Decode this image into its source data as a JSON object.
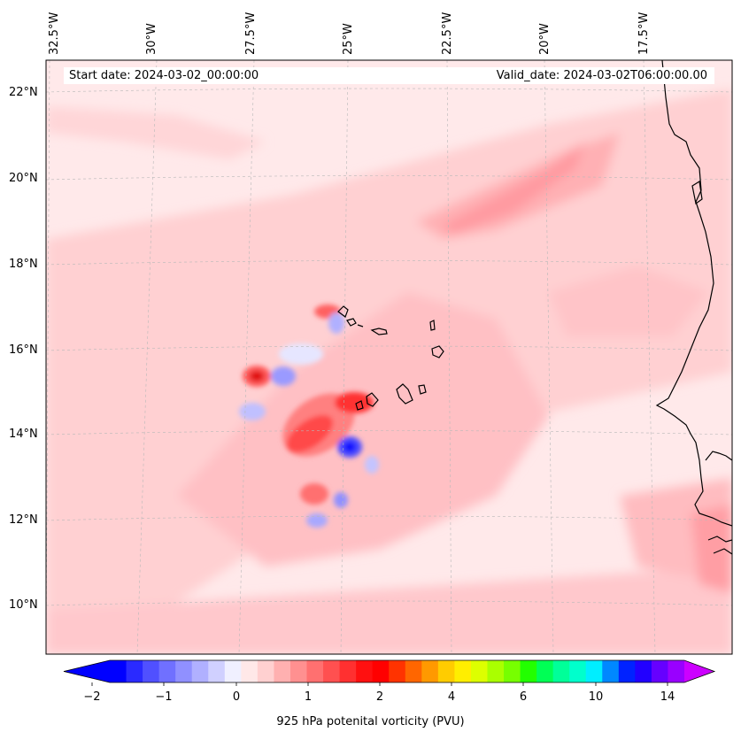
{
  "header": {
    "start_date": "Start date: 2024-03-02_00:00:00",
    "valid_date": "Valid_date: 2024-03-02T06:00:00.00"
  },
  "map": {
    "longitude_labels": [
      "32.5°W",
      "30°W",
      "27.5°W",
      "25°W",
      "22.5°W",
      "20°W",
      "17.5°W"
    ],
    "latitude_labels": [
      "22°N",
      "20°N",
      "18°N",
      "16°N",
      "14°N",
      "12°N",
      "10°N"
    ],
    "extent": {
      "lon_west": -32.5,
      "lon_east": -15.5,
      "lat_south": 8.9,
      "lat_north": 22.8
    },
    "gridlines": true,
    "background_color": "#ffe9ea",
    "coastline_color": "#000000"
  },
  "colorbar": {
    "label": "925 hPa potenital vorticity (PVU)",
    "tick_labels": [
      "−2",
      "−1",
      "0",
      "1",
      "2",
      "4",
      "6",
      "10",
      "14"
    ],
    "extend": "both",
    "colors": [
      "#0000ff",
      "#2a2aff",
      "#5050ff",
      "#7070ff",
      "#9090ff",
      "#b0b0ff",
      "#d0d0ff",
      "#f0f0ff",
      "#ffe8e8",
      "#ffd0d0",
      "#ffb0b0",
      "#ff9090",
      "#ff7070",
      "#ff5050",
      "#ff3030",
      "#ff1010",
      "#ff0000",
      "#ff3300",
      "#ff6600",
      "#ff9900",
      "#ffcc00",
      "#ffee00",
      "#ddff00",
      "#aaff00",
      "#77ff00",
      "#22ff00",
      "#00ff55",
      "#00ff99",
      "#00ffcc",
      "#00eeff",
      "#0088ff",
      "#0022ff",
      "#2200ff",
      "#6600ff",
      "#9900ff"
    ],
    "under_color": "#0000ff",
    "over_color": "#cc00ff"
  }
}
